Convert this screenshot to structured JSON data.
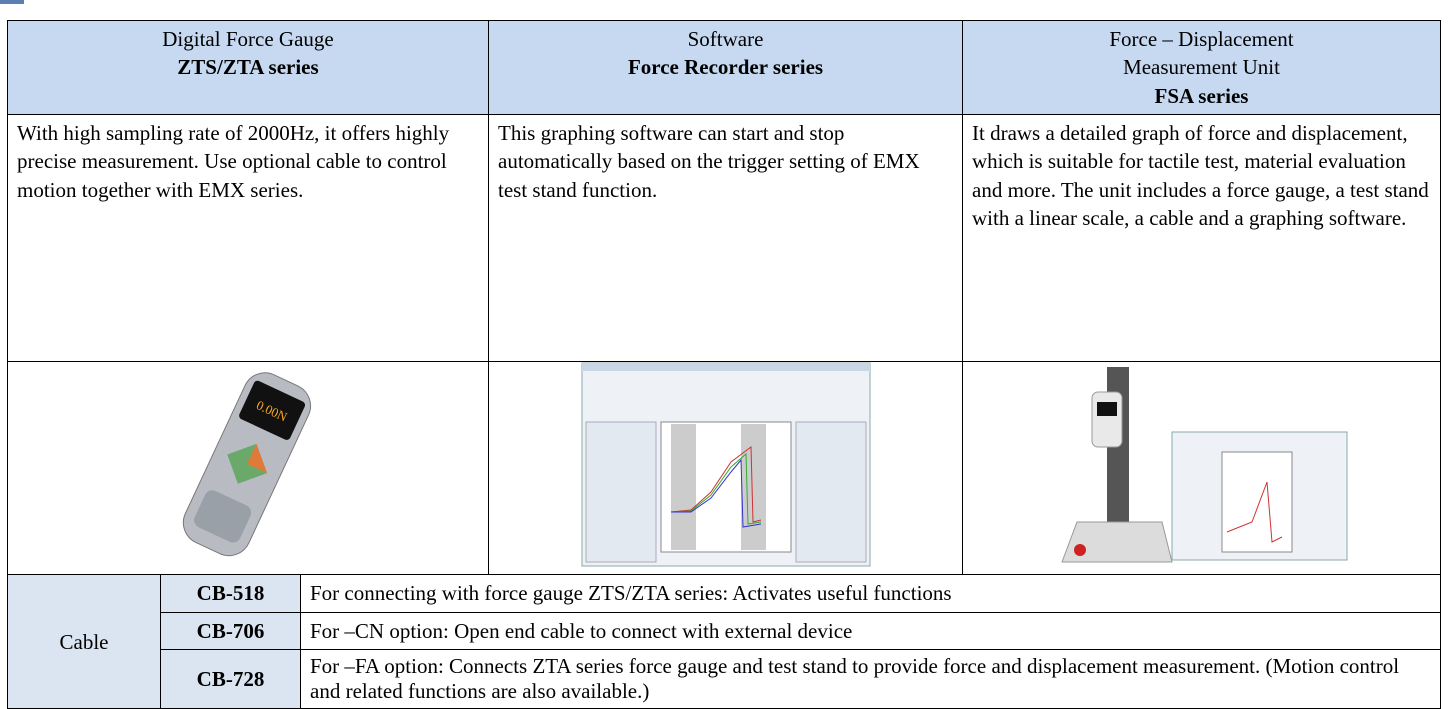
{
  "products": [
    {
      "category": "Digital Force Gauge",
      "series": "ZTS/ZTA series",
      "description": "With high sampling rate of 2000Hz, it offers highly precise measurement. Use optional cable to control motion together with EMX series."
    },
    {
      "category": "Software",
      "series": "Force Recorder series",
      "description": "This graphing software can start and stop automatically based on the trigger setting of EMX test stand function."
    },
    {
      "category": "Force – Displacement Measurement Unit",
      "series": "FSA series",
      "description": "It draws a detailed graph of force and displacement, which is suitable for tactile test, material evaluation and more. The unit includes a force gauge, a test stand with a linear scale, a cable and a graphing software."
    }
  ],
  "cables": {
    "label": "Cable",
    "items": [
      {
        "code": "CB-518",
        "description": "For connecting with force gauge ZTS/ZTA series: Activates useful functions"
      },
      {
        "code": "CB-706",
        "description": "For –CN option: Open end cable to connect with external device"
      },
      {
        "code": "CB-728",
        "description": "For –FA option: Connects ZTA series force gauge and test stand to provide force and displacement measurement. (Motion control and related functions are also available.)"
      }
    ]
  }
}
